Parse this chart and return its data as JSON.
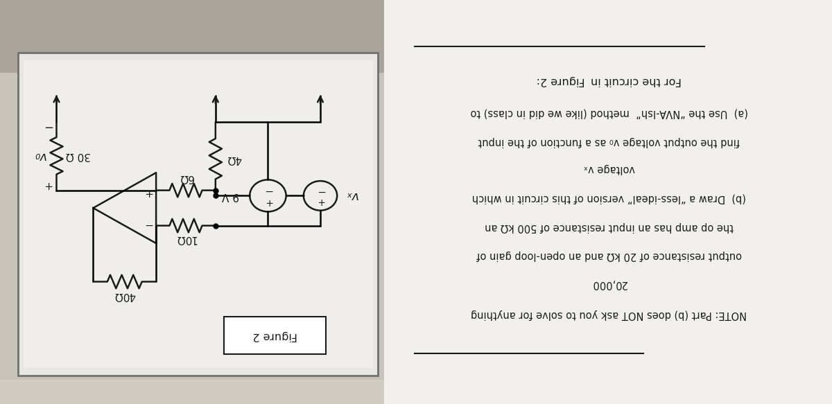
{
  "bg_color_top": "#b8b4ac",
  "bg_color_main": "#c8c4bc",
  "circuit_panel_bg": "#e8e6e2",
  "circuit_inner_bg": "#f0eeea",
  "right_panel_bg": "#f2f0ec",
  "black": "#1a1a1a",
  "figure_label": "Figure 2",
  "text_lines": [
    "For the circuit in  Figure 2:",
    "(a)  Use the “NVA-Ish”  method (like we did in class) to",
    "find the output voltage v₀ as a function of the input",
    "voltage vₓ",
    "(b)  Draw a “less-ideal” version of this circuit in which",
    "the op amp has an input resistance of 500 kΩ an",
    "output resistance of 20 kΩ and an open-loop gain of",
    "20,000",
    "NOTE: Part (b) does NOT ask you to solve for anything"
  ]
}
